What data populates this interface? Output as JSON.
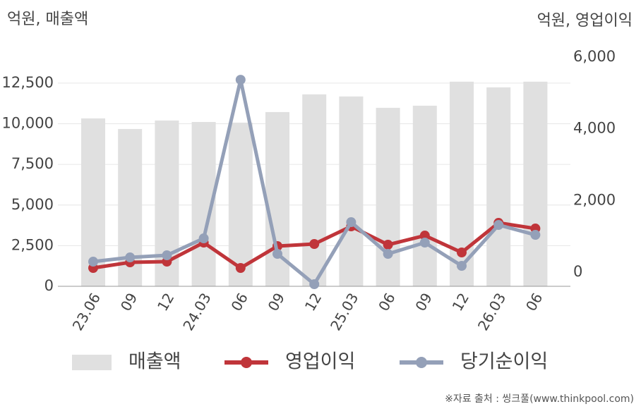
{
  "chart_data": {
    "type": "bar-line",
    "left_axis_title": "억원, 매출액",
    "right_axis_title": "억원, 영업이익",
    "source": "※자료 출처 : 씽크풀(www.thinkpool.com)",
    "categories": [
      "23.06",
      "09",
      "12",
      "24.03",
      "06",
      "09",
      "12",
      "25.03",
      "06",
      "09",
      "12",
      "26.03",
      "06"
    ],
    "ylim": [
      0,
      14100
    ],
    "yticks": [
      0,
      {
        "value": 2500,
        "label": "2,500"
      },
      {
        "value": 5000,
        "label": "5,000"
      },
      {
        "value": 7500,
        "label": "7,500"
      },
      {
        "value": 10000,
        "label": "10,000"
      },
      {
        "value": 12500,
        "label": "12,500"
      }
    ],
    "y2lim": [
      -393,
      6000
    ],
    "y2ticks": [
      0,
      {
        "value": 2000,
        "label": "2,000"
      },
      {
        "value": 4000,
        "label": "4,000"
      },
      {
        "value": 6000,
        "label": "6,000"
      }
    ],
    "grid": true,
    "series": [
      {
        "name": "매출액",
        "kind": "bar",
        "color": "#e0e0e0",
        "values": [
          10330,
          9680,
          10200,
          10110,
          10070,
          10720,
          11810,
          11680,
          10980,
          11110,
          12590,
          12240,
          12590
        ]
      },
      {
        "name": "영업이익",
        "kind": "line",
        "axis": "y2",
        "color": "#c0353a",
        "values": [
          118,
          275,
          295,
          826,
          118,
          728,
          787,
          1278,
          767,
          1023,
          551,
          1377,
          1219
        ]
      },
      {
        "name": "당기순이익",
        "kind": "line",
        "axis": "y2",
        "color": "#94a0b8",
        "values": [
          295,
          413,
          472,
          944,
          5369,
          511,
          -334,
          1396,
          511,
          826,
          177,
          1318,
          1042
        ]
      }
    ]
  }
}
